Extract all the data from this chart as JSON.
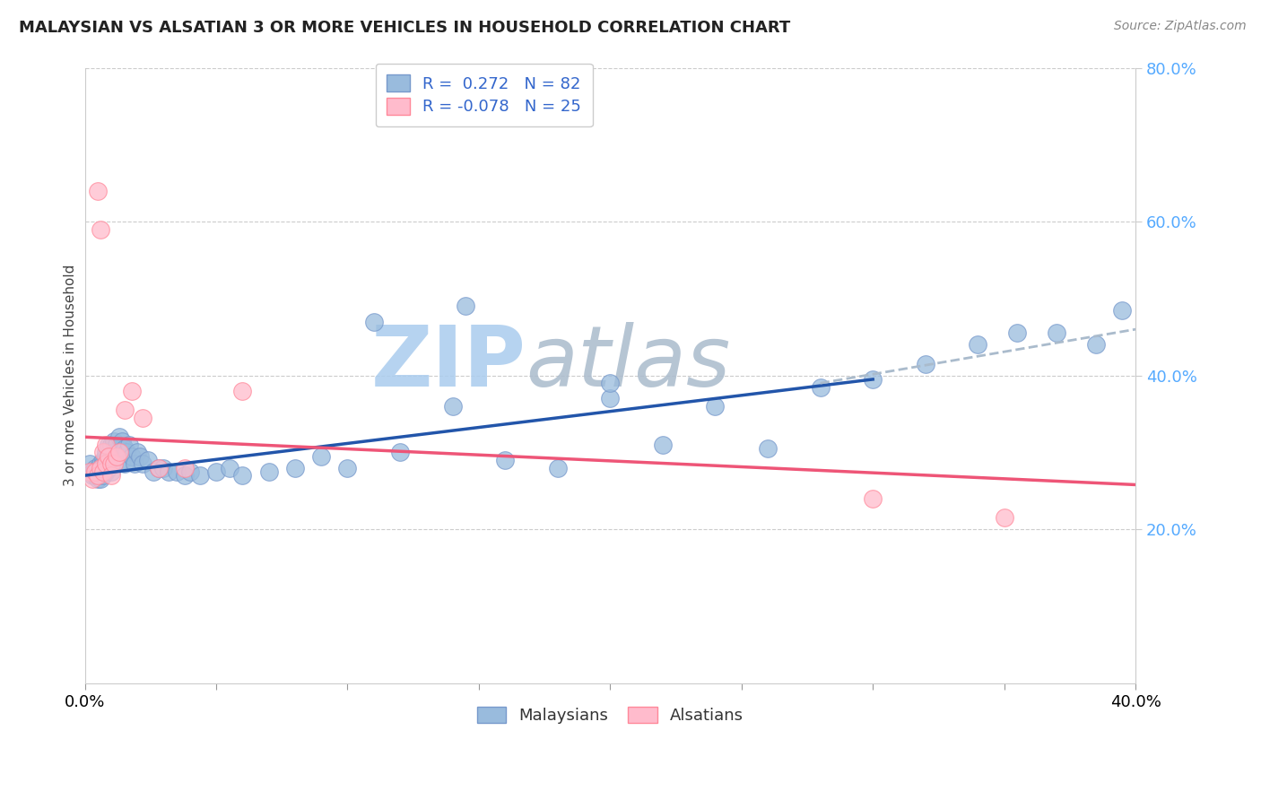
{
  "title": "MALAYSIAN VS ALSATIAN 3 OR MORE VEHICLES IN HOUSEHOLD CORRELATION CHART",
  "source": "Source: ZipAtlas.com",
  "ylabel": "3 or more Vehicles in Household",
  "xlim": [
    0.0,
    0.4
  ],
  "ylim": [
    0.0,
    0.8
  ],
  "yticks_right": [
    0.2,
    0.4,
    0.6,
    0.8
  ],
  "ytick_right_labels": [
    "20.0%",
    "40.0%",
    "60.0%",
    "80.0%"
  ],
  "blue_R": 0.272,
  "blue_N": 82,
  "pink_R": -0.078,
  "pink_N": 25,
  "blue_color": "#99BBDD",
  "blue_edge_color": "#7799CC",
  "pink_color": "#FFBBCC",
  "pink_edge_color": "#FF8899",
  "trend_blue_color": "#2255AA",
  "trend_pink_color": "#EE5577",
  "trend_dash_color": "#AABBCC",
  "watermark_zip": "ZIP",
  "watermark_atlas": "atlas",
  "watermark_color_zip": "#AABBDD",
  "watermark_color_atlas": "#AABBDD",
  "blue_x": [
    0.002,
    0.003,
    0.003,
    0.004,
    0.004,
    0.004,
    0.005,
    0.005,
    0.005,
    0.005,
    0.006,
    0.006,
    0.006,
    0.006,
    0.007,
    0.007,
    0.007,
    0.007,
    0.008,
    0.008,
    0.008,
    0.008,
    0.009,
    0.009,
    0.009,
    0.01,
    0.01,
    0.01,
    0.01,
    0.011,
    0.011,
    0.011,
    0.012,
    0.012,
    0.013,
    0.013,
    0.014,
    0.014,
    0.015,
    0.015,
    0.016,
    0.017,
    0.018,
    0.019,
    0.02,
    0.021,
    0.022,
    0.024,
    0.026,
    0.028,
    0.03,
    0.032,
    0.035,
    0.038,
    0.04,
    0.044,
    0.05,
    0.055,
    0.06,
    0.07,
    0.08,
    0.09,
    0.1,
    0.11,
    0.12,
    0.14,
    0.16,
    0.18,
    0.2,
    0.22,
    0.24,
    0.26,
    0.28,
    0.3,
    0.32,
    0.34,
    0.355,
    0.37,
    0.385,
    0.395,
    0.2,
    0.145
  ],
  "blue_y": [
    0.285,
    0.275,
    0.27,
    0.28,
    0.27,
    0.275,
    0.28,
    0.27,
    0.265,
    0.275,
    0.285,
    0.275,
    0.27,
    0.265,
    0.29,
    0.285,
    0.275,
    0.27,
    0.295,
    0.285,
    0.3,
    0.275,
    0.31,
    0.295,
    0.28,
    0.31,
    0.295,
    0.285,
    0.275,
    0.315,
    0.3,
    0.285,
    0.31,
    0.295,
    0.32,
    0.3,
    0.315,
    0.29,
    0.305,
    0.285,
    0.3,
    0.31,
    0.295,
    0.285,
    0.3,
    0.295,
    0.285,
    0.29,
    0.275,
    0.28,
    0.28,
    0.275,
    0.275,
    0.27,
    0.275,
    0.27,
    0.275,
    0.28,
    0.27,
    0.275,
    0.28,
    0.295,
    0.28,
    0.47,
    0.3,
    0.36,
    0.29,
    0.28,
    0.37,
    0.31,
    0.36,
    0.305,
    0.385,
    0.395,
    0.415,
    0.44,
    0.455,
    0.455,
    0.44,
    0.485,
    0.39,
    0.49
  ],
  "pink_x": [
    0.002,
    0.003,
    0.004,
    0.005,
    0.005,
    0.006,
    0.006,
    0.007,
    0.007,
    0.008,
    0.008,
    0.009,
    0.01,
    0.01,
    0.011,
    0.012,
    0.013,
    0.015,
    0.018,
    0.022,
    0.028,
    0.038,
    0.06,
    0.3,
    0.35
  ],
  "pink_y": [
    0.275,
    0.265,
    0.275,
    0.64,
    0.27,
    0.59,
    0.28,
    0.3,
    0.275,
    0.31,
    0.285,
    0.295,
    0.285,
    0.27,
    0.285,
    0.295,
    0.3,
    0.355,
    0.38,
    0.345,
    0.28,
    0.28,
    0.38,
    0.24,
    0.215
  ],
  "blue_trend_x0": 0.0,
  "blue_trend_x1": 0.3,
  "blue_trend_y0": 0.27,
  "blue_trend_y1": 0.395,
  "pink_trend_x0": 0.0,
  "pink_trend_x1": 0.4,
  "pink_trend_y0": 0.32,
  "pink_trend_y1": 0.258,
  "dash_trend_x0": 0.28,
  "dash_trend_x1": 0.4,
  "dash_trend_y0": 0.39,
  "dash_trend_y1": 0.46
}
